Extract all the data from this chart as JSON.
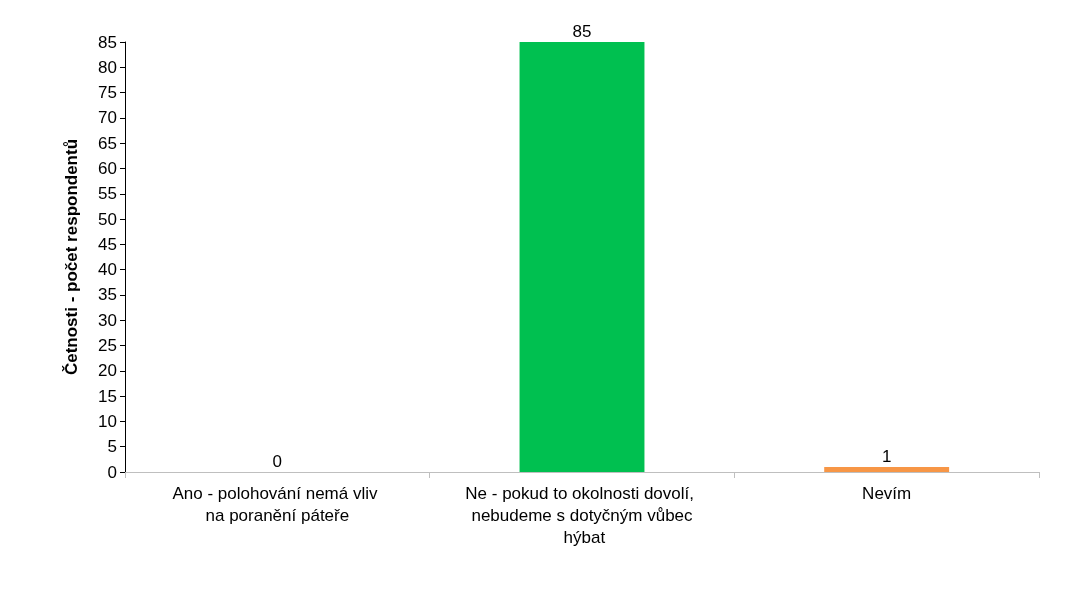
{
  "chart_data": {
    "type": "bar",
    "ylabel": "Četnosti - počet respondentů",
    "categories": [
      "Ano - polohování nemá vliv na poranění páteře",
      "Ne - pokud to okolnosti dovolí, nebudeme s dotyčným vůbec hýbat",
      "Nevím"
    ],
    "values": [
      0,
      85,
      1
    ],
    "colors": [
      "#4472c4",
      "#00c050",
      "#f79646"
    ],
    "ylim": [
      0,
      85
    ],
    "yticks": [
      0,
      5,
      10,
      15,
      20,
      25,
      30,
      35,
      40,
      45,
      50,
      55,
      60,
      65,
      70,
      75,
      80,
      85
    ],
    "data_labels": true
  }
}
